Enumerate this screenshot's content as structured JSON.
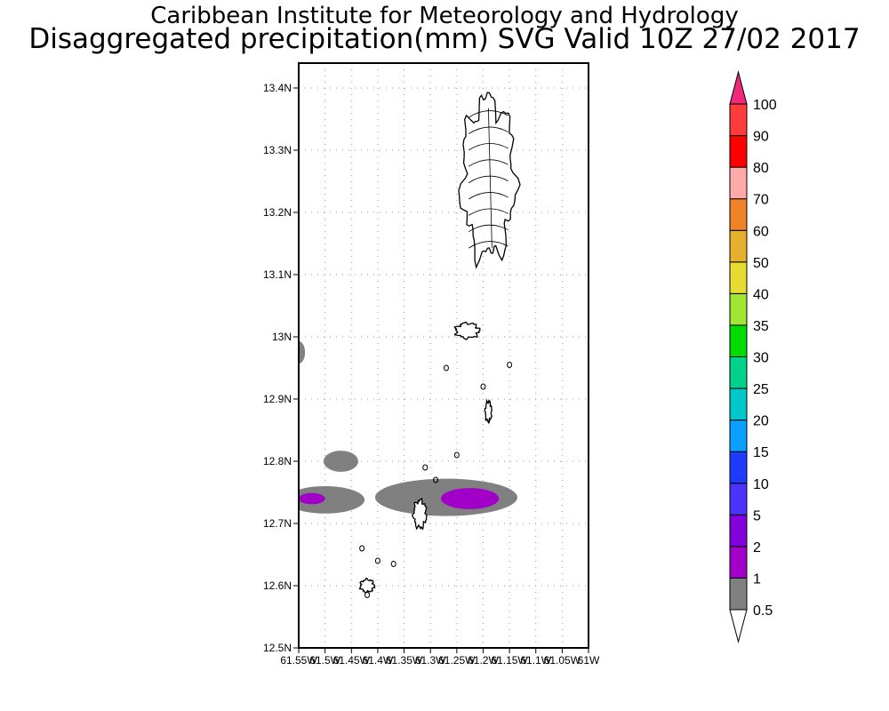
{
  "title_line1": "Caribbean Institute for Meteorology and Hydrology",
  "title_line2": "Disaggregated precipitation(mm) SVG Valid 10Z 27/02 2017",
  "map": {
    "lon_range": [
      -61.55,
      -61.0
    ],
    "lat_range": [
      12.5,
      13.44
    ],
    "grid": true,
    "lat_ticks": [
      {
        "value": 12.5,
        "label": "12.5N"
      },
      {
        "value": 12.6,
        "label": "12.6N"
      },
      {
        "value": 12.7,
        "label": "12.7N"
      },
      {
        "value": 12.8,
        "label": "12.8N"
      },
      {
        "value": 12.9,
        "label": "12.9N"
      },
      {
        "value": 13.0,
        "label": "13N"
      },
      {
        "value": 13.1,
        "label": "13.1N"
      },
      {
        "value": 13.2,
        "label": "13.2N"
      },
      {
        "value": 13.3,
        "label": "13.3N"
      },
      {
        "value": 13.4,
        "label": "13.4N"
      }
    ],
    "lon_ticks": [
      {
        "value": -61.55,
        "label": "61.55W"
      },
      {
        "value": -61.5,
        "label": "61.5W"
      },
      {
        "value": -61.45,
        "label": "61.45W"
      },
      {
        "value": -61.4,
        "label": "61.4W"
      },
      {
        "value": -61.35,
        "label": "61.35W"
      },
      {
        "value": -61.3,
        "label": "61.3W"
      },
      {
        "value": -61.25,
        "label": "61.25W"
      },
      {
        "value": -61.2,
        "label": "61.2W"
      },
      {
        "value": -61.15,
        "label": "61.15W"
      },
      {
        "value": -61.1,
        "label": "61.1W"
      },
      {
        "value": -61.05,
        "label": "61.05W"
      },
      {
        "value": -61.0,
        "label": "61W"
      }
    ],
    "precip_areas": [
      {
        "lon": -61.55,
        "lat": 12.975,
        "rlon": 0.012,
        "rlat": 0.018,
        "level": "0.5"
      },
      {
        "lon": -61.47,
        "lat": 12.8,
        "rlon": 0.033,
        "rlat": 0.017,
        "level": "0.5"
      },
      {
        "lon": -61.5,
        "lat": 12.738,
        "rlon": 0.075,
        "rlat": 0.022,
        "level": "0.5"
      },
      {
        "lon": -61.27,
        "lat": 12.742,
        "rlon": 0.135,
        "rlat": 0.03,
        "level": "0.5"
      },
      {
        "lon": -61.525,
        "lat": 12.74,
        "rlon": 0.025,
        "rlat": 0.009,
        "level": "1"
      },
      {
        "lon": -61.225,
        "lat": 12.74,
        "rlon": 0.055,
        "rlat": 0.017,
        "level": "1"
      }
    ],
    "islands": [
      {
        "name": "st-vincent",
        "lon": -61.19,
        "lat": 13.255,
        "rlon": 0.05,
        "rlat": 0.125
      },
      {
        "name": "bequia",
        "lon": -61.23,
        "lat": 13.01,
        "rlon": 0.022,
        "rlat": 0.012
      },
      {
        "name": "mustique",
        "lon": -61.19,
        "lat": 12.88,
        "rlon": 0.006,
        "rlat": 0.016
      },
      {
        "name": "canouan",
        "lon": -61.32,
        "lat": 12.715,
        "rlon": 0.012,
        "rlat": 0.022
      },
      {
        "name": "union",
        "lon": -61.42,
        "lat": 12.6,
        "rlon": 0.013,
        "rlat": 0.01
      }
    ]
  },
  "colorbar": {
    "labels": [
      "0.5",
      "1",
      "2",
      "5",
      "10",
      "15",
      "20",
      "25",
      "30",
      "35",
      "40",
      "50",
      "60",
      "70",
      "80",
      "90",
      "100"
    ],
    "colors": [
      "#808080",
      "#a000c8",
      "#8200dc",
      "#4b32ff",
      "#1e3cff",
      "#0aa0ff",
      "#00c8c8",
      "#00d28c",
      "#00dc00",
      "#a0e632",
      "#e6dc32",
      "#e6af2d",
      "#f08228",
      "#ffaaaa",
      "#ff0000",
      "#ff3c3c"
    ],
    "over_color": "#f0287a",
    "under_color": "#ffffff"
  },
  "colors": {
    "level_0.5": "#808080",
    "level_1": "#a000c8"
  }
}
